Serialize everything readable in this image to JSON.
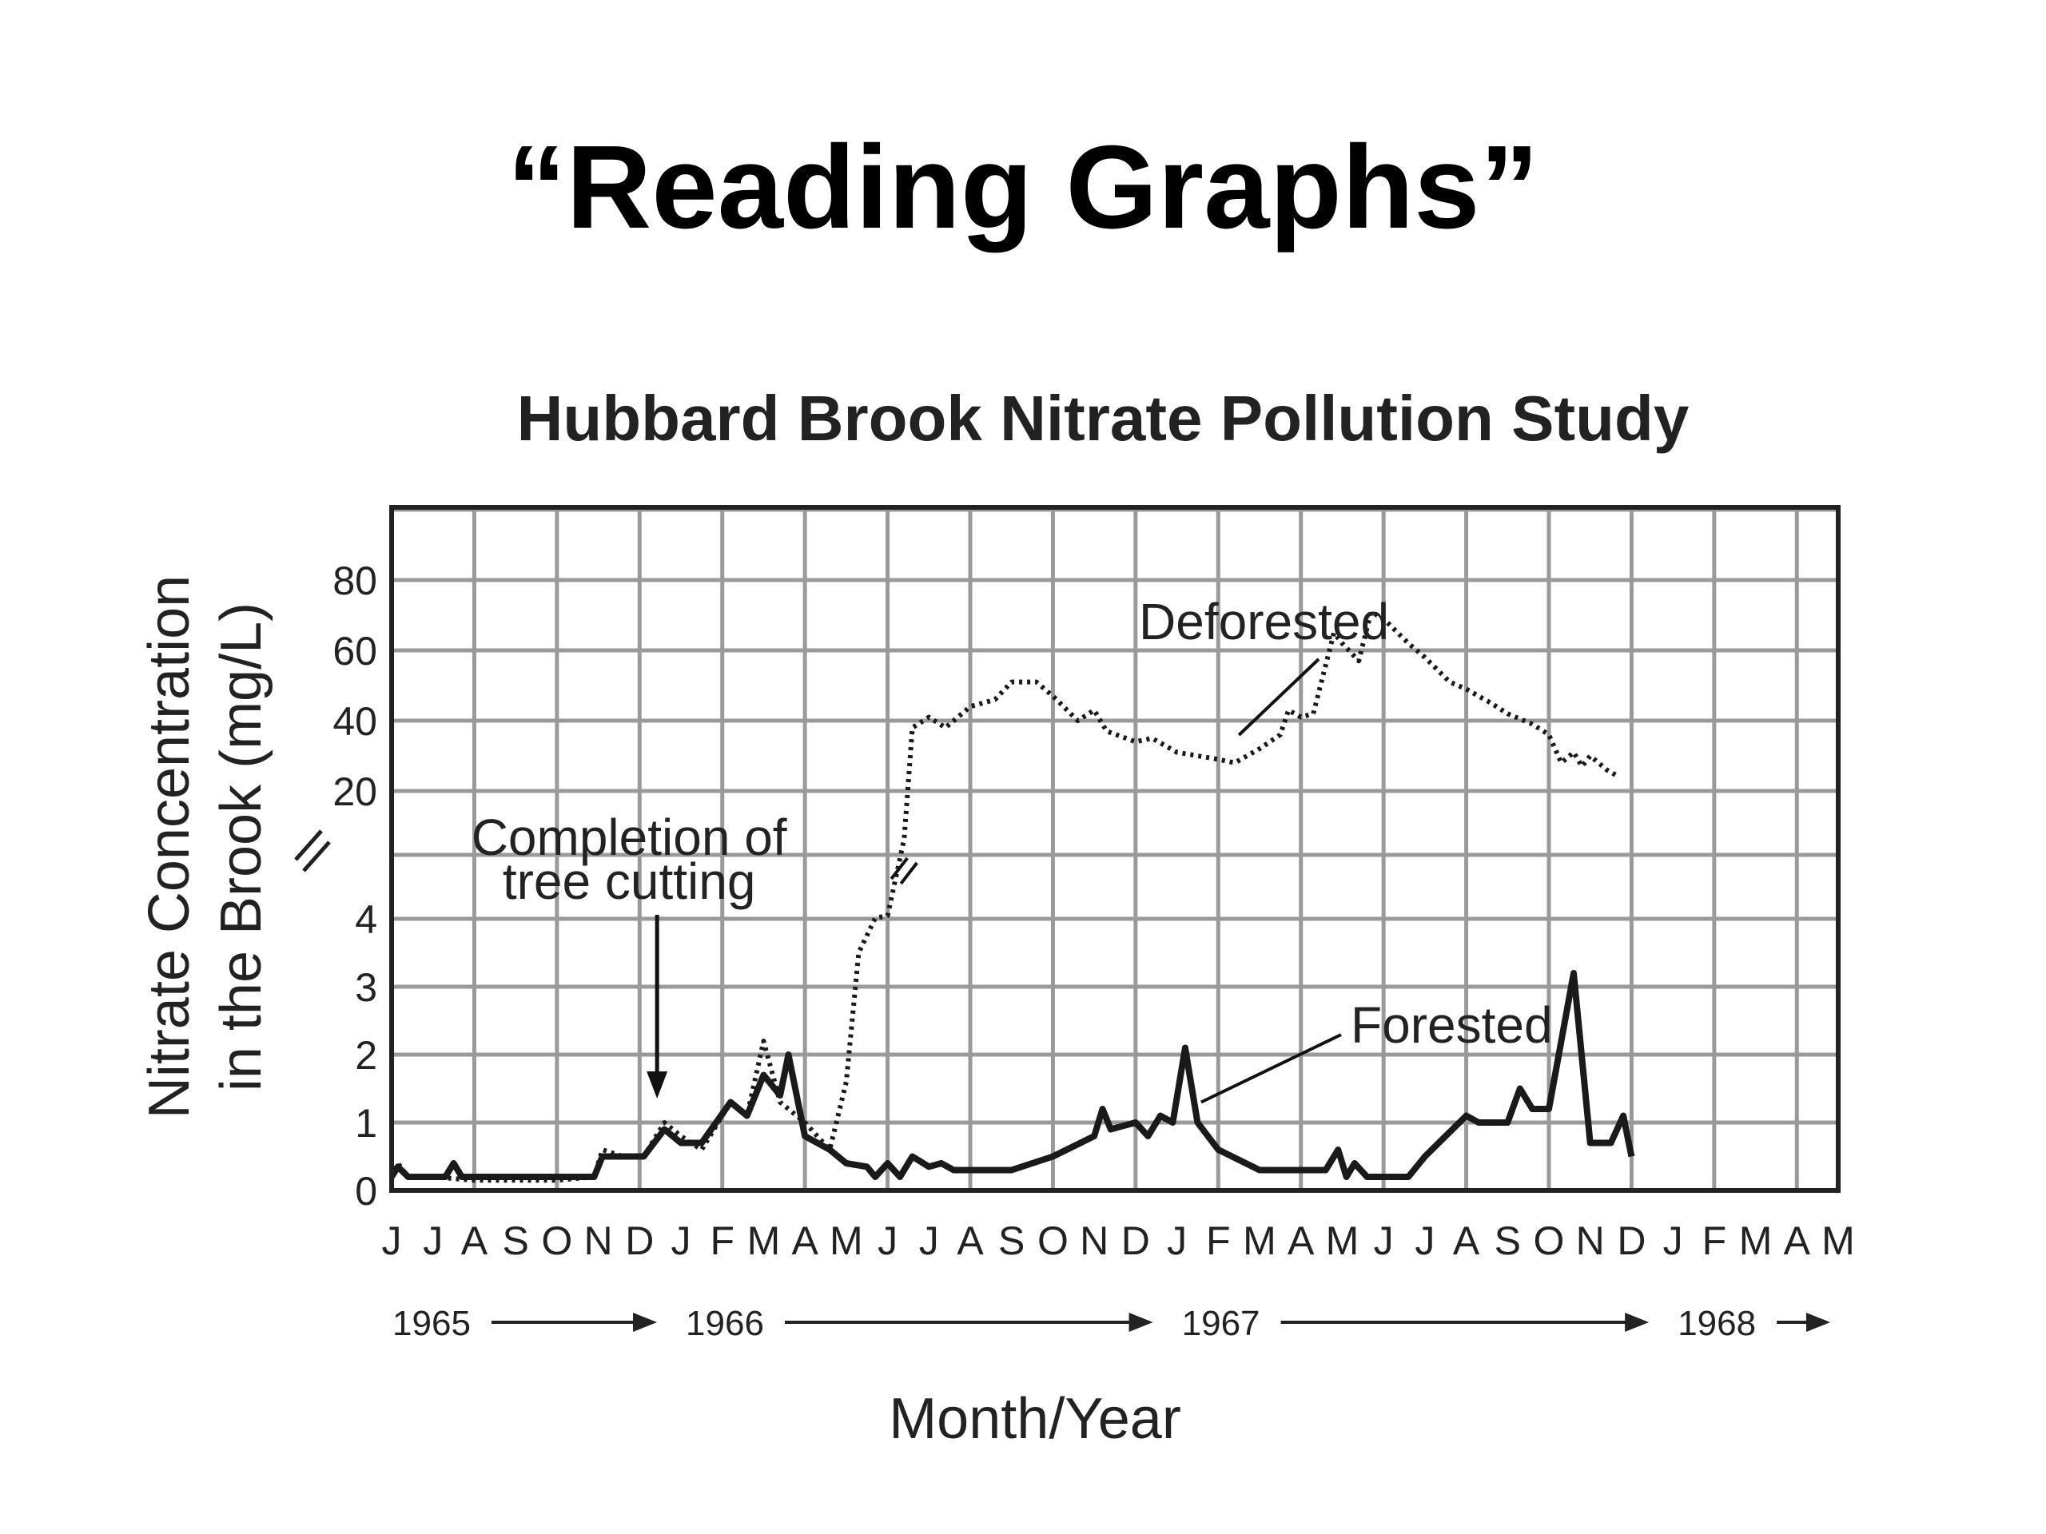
{
  "slide": {
    "title": "“Reading Graphs”"
  },
  "chart_data": {
    "type": "line",
    "title": "Hubbard Brook Nitrate Pollution Study",
    "xlabel": "Month/Year",
    "ylabel_line1": "Nitrate Concentration",
    "ylabel_line2": "in the Brook (mg/L)",
    "y_scale": "broken",
    "y_ticks_lower": [
      0,
      1,
      2,
      3,
      4
    ],
    "y_ticks_upper": [
      20,
      40,
      60,
      80
    ],
    "month_labels": [
      "J",
      "J",
      "A",
      "S",
      "O",
      "N",
      "D",
      "J",
      "F",
      "M",
      "A",
      "M",
      "J",
      "J",
      "A",
      "S",
      "O",
      "N",
      "D",
      "J",
      "F",
      "M",
      "A",
      "M",
      "J",
      "J",
      "A",
      "S",
      "O",
      "N",
      "D",
      "J",
      "F",
      "M",
      "A",
      "M"
    ],
    "year_labels": [
      "1965",
      "1966",
      "1967",
      "1968"
    ],
    "grid": true,
    "series": [
      {
        "name": "Deforested",
        "style": "dotted",
        "points": [
          [
            0,
            0.2
          ],
          [
            0.15,
            0.4
          ],
          [
            0.4,
            0.2
          ],
          [
            1,
            0.2
          ],
          [
            2,
            0.15
          ],
          [
            3,
            0.15
          ],
          [
            4,
            0.15
          ],
          [
            4.9,
            0.2
          ],
          [
            5.1,
            0.6
          ],
          [
            5.6,
            0.5
          ],
          [
            6.1,
            0.5
          ],
          [
            6.6,
            1.0
          ],
          [
            7.0,
            0.8
          ],
          [
            7.5,
            0.6
          ],
          [
            8.2,
            1.3
          ],
          [
            8.6,
            1.1
          ],
          [
            9.0,
            2.2
          ],
          [
            9.4,
            1.3
          ],
          [
            10.0,
            1.0
          ],
          [
            10.6,
            0.6
          ],
          [
            11.0,
            1.6
          ],
          [
            11.3,
            3.5
          ],
          [
            11.7,
            4.1
          ],
          [
            12.0,
            4.4
          ],
          [
            12.4,
            14
          ],
          [
            12.6,
            38
          ],
          [
            13.0,
            41
          ],
          [
            13.4,
            38
          ],
          [
            14.0,
            44
          ],
          [
            14.6,
            46
          ],
          [
            15.0,
            51
          ],
          [
            15.6,
            51
          ],
          [
            16.0,
            47
          ],
          [
            16.6,
            40
          ],
          [
            17.0,
            43
          ],
          [
            17.3,
            37
          ],
          [
            18.0,
            34
          ],
          [
            18.4,
            35
          ],
          [
            19.0,
            31
          ],
          [
            20.0,
            29
          ],
          [
            20.4,
            28
          ],
          [
            21.0,
            32
          ],
          [
            21.5,
            36
          ],
          [
            21.7,
            43
          ],
          [
            22.0,
            41
          ],
          [
            22.3,
            42
          ],
          [
            22.8,
            65
          ],
          [
            23.0,
            62
          ],
          [
            23.4,
            57
          ],
          [
            23.7,
            71
          ],
          [
            24.0,
            69
          ],
          [
            24.6,
            62
          ],
          [
            25.0,
            58
          ],
          [
            25.6,
            51
          ],
          [
            26.0,
            49
          ],
          [
            26.6,
            45
          ],
          [
            27.0,
            42
          ],
          [
            27.6,
            39
          ],
          [
            28.0,
            36
          ],
          [
            28.3,
            28
          ],
          [
            28.6,
            31
          ],
          [
            28.8,
            27
          ],
          [
            29.0,
            30
          ],
          [
            29.4,
            26
          ],
          [
            29.7,
            24
          ]
        ]
      },
      {
        "name": "Forested",
        "style": "solid",
        "points": [
          [
            0,
            0.2
          ],
          [
            0.15,
            0.35
          ],
          [
            0.4,
            0.2
          ],
          [
            1,
            0.2
          ],
          [
            1.3,
            0.2
          ],
          [
            1.5,
            0.4
          ],
          [
            1.7,
            0.2
          ],
          [
            2,
            0.2
          ],
          [
            3,
            0.2
          ],
          [
            4,
            0.2
          ],
          [
            4.9,
            0.2
          ],
          [
            5.1,
            0.5
          ],
          [
            5.6,
            0.5
          ],
          [
            6.1,
            0.5
          ],
          [
            6.6,
            0.9
          ],
          [
            7.0,
            0.7
          ],
          [
            7.5,
            0.7
          ],
          [
            8.2,
            1.3
          ],
          [
            8.6,
            1.1
          ],
          [
            9.0,
            1.7
          ],
          [
            9.4,
            1.4
          ],
          [
            9.6,
            2.0
          ],
          [
            10.0,
            0.8
          ],
          [
            10.6,
            0.6
          ],
          [
            11.0,
            0.4
          ],
          [
            11.5,
            0.35
          ],
          [
            11.7,
            0.2
          ],
          [
            12.0,
            0.4
          ],
          [
            12.3,
            0.2
          ],
          [
            12.6,
            0.5
          ],
          [
            13.0,
            0.35
          ],
          [
            13.3,
            0.4
          ],
          [
            13.6,
            0.3
          ],
          [
            14.0,
            0.3
          ],
          [
            15.0,
            0.3
          ],
          [
            16.0,
            0.5
          ],
          [
            17.0,
            0.8
          ],
          [
            17.2,
            1.2
          ],
          [
            17.4,
            0.9
          ],
          [
            18.0,
            1.0
          ],
          [
            18.3,
            0.8
          ],
          [
            18.6,
            1.1
          ],
          [
            18.9,
            1.0
          ],
          [
            19.2,
            2.1
          ],
          [
            19.5,
            1.0
          ],
          [
            20.0,
            0.6
          ],
          [
            21.0,
            0.3
          ],
          [
            22.0,
            0.3
          ],
          [
            22.6,
            0.3
          ],
          [
            22.9,
            0.6
          ],
          [
            23.1,
            0.2
          ],
          [
            23.3,
            0.4
          ],
          [
            23.6,
            0.2
          ],
          [
            24.0,
            0.2
          ],
          [
            24.6,
            0.2
          ],
          [
            25.0,
            0.5
          ],
          [
            26.0,
            1.1
          ],
          [
            26.3,
            1.0
          ],
          [
            27.0,
            1.0
          ],
          [
            27.3,
            1.5
          ],
          [
            27.6,
            1.2
          ],
          [
            28.0,
            1.2
          ],
          [
            28.6,
            3.2
          ],
          [
            29.0,
            0.7
          ],
          [
            29.5,
            0.7
          ],
          [
            29.8,
            1.1
          ],
          [
            30.0,
            0.5
          ]
        ]
      }
    ],
    "annotations": [
      {
        "name": "completion-of-tree-cutting",
        "line1": "Completion of",
        "line2": "tree cutting",
        "month_index": 6.5,
        "value": 1.0
      },
      {
        "name": "deforested-label",
        "text": "Deforested",
        "month_index": 20.5,
        "value": 35
      },
      {
        "name": "forested-label",
        "text": "Forested",
        "month_index": 19.2,
        "value": 1.3
      }
    ]
  }
}
